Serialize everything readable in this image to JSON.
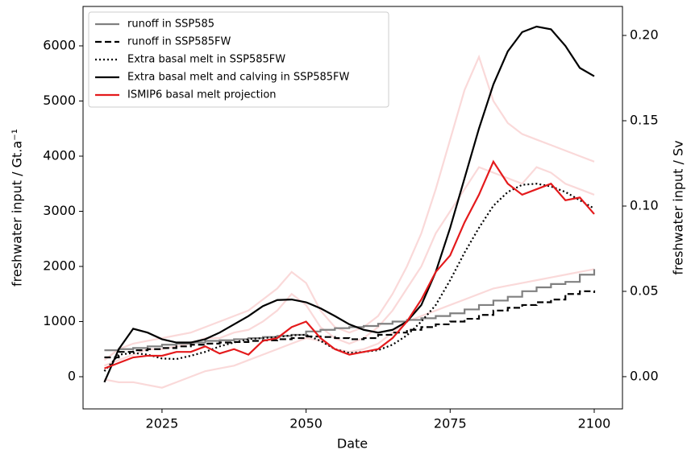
{
  "chart_data": {
    "type": "line",
    "x": [
      2015,
      2017.5,
      2020,
      2022.5,
      2025,
      2027.5,
      2030,
      2032.5,
      2035,
      2037.5,
      2040,
      2042.5,
      2045,
      2047.5,
      2050,
      2052.5,
      2055,
      2057.5,
      2060,
      2062.5,
      2065,
      2067.5,
      2070,
      2072.5,
      2075,
      2077.5,
      2080,
      2082.5,
      2085,
      2087.5,
      2090,
      2092.5,
      2095,
      2097.5,
      2100
    ],
    "series": [
      {
        "color": "#f08080",
        "opacity": 0.3,
        "linestyle": "solid",
        "values": [
          -50,
          -100,
          -100,
          -150,
          -200,
          -100,
          0,
          100,
          150,
          200,
          300,
          400,
          500,
          600,
          700,
          650,
          500,
          450,
          500,
          600,
          800,
          1000,
          1100,
          1200,
          1300,
          1400,
          1500,
          1600,
          1650,
          1700,
          1750,
          1800,
          1850,
          1900,
          1950
        ]
      },
      {
        "color": "#f08080",
        "opacity": 0.3,
        "linestyle": "solid",
        "values": [
          300,
          500,
          600,
          650,
          700,
          750,
          800,
          900,
          1000,
          1100,
          1200,
          1400,
          1600,
          1900,
          1700,
          1200,
          900,
          800,
          900,
          1100,
          1500,
          2000,
          2600,
          3400,
          4300,
          5200,
          5800,
          5000,
          4600,
          4400,
          4300,
          4200,
          4100,
          4000,
          3900
        ]
      },
      {
        "color": "#f08080",
        "opacity": 0.3,
        "linestyle": "solid",
        "values": [
          200,
          300,
          400,
          500,
          500,
          550,
          600,
          700,
          700,
          800,
          850,
          1000,
          1200,
          1500,
          1300,
          900,
          700,
          600,
          700,
          900,
          1200,
          1600,
          2000,
          2600,
          3000,
          3400,
          3800,
          3700,
          3600,
          3500,
          3800,
          3700,
          3500,
          3400,
          3300
        ]
      },
      {
        "name": "runoff in SSP585",
        "color": "#808080",
        "linestyle": "solid",
        "step": true,
        "values": [
          480,
          500,
          520,
          550,
          580,
          600,
          620,
          650,
          660,
          680,
          700,
          720,
          740,
          760,
          820,
          850,
          880,
          900,
          920,
          960,
          1000,
          1030,
          1060,
          1100,
          1150,
          1220,
          1300,
          1380,
          1450,
          1550,
          1620,
          1680,
          1720,
          1850,
          1950
        ]
      },
      {
        "name": "runoff in SSP585FW",
        "color": "#000000",
        "linestyle": "dashed",
        "step": true,
        "values": [
          350,
          450,
          480,
          500,
          520,
          550,
          580,
          600,
          620,
          630,
          650,
          660,
          680,
          700,
          730,
          720,
          700,
          680,
          700,
          760,
          800,
          850,
          900,
          950,
          1000,
          1050,
          1120,
          1200,
          1250,
          1300,
          1350,
          1400,
          1500,
          1550,
          1520
        ]
      },
      {
        "name": "Extra basal melt in SSP585FW",
        "color": "#000000",
        "linestyle": "dotted",
        "values": [
          100,
          400,
          430,
          400,
          330,
          320,
          380,
          450,
          550,
          620,
          680,
          700,
          720,
          750,
          760,
          650,
          500,
          430,
          450,
          480,
          580,
          750,
          1000,
          1300,
          1750,
          2250,
          2700,
          3100,
          3350,
          3480,
          3500,
          3450,
          3350,
          3200,
          3050
        ]
      },
      {
        "name": "Extra basal melt and calving in SSP585FW",
        "color": "#000000",
        "linestyle": "solid",
        "values": [
          -100,
          500,
          870,
          800,
          680,
          620,
          620,
          680,
          800,
          950,
          1100,
          1280,
          1390,
          1400,
          1350,
          1240,
          1100,
          950,
          850,
          800,
          850,
          1000,
          1300,
          1900,
          2700,
          3600,
          4500,
          5300,
          5900,
          6250,
          6350,
          6300,
          6000,
          5600,
          5450
        ]
      },
      {
        "name": "ISMIP6 basal melt projection",
        "color": "#e41a1c",
        "linestyle": "solid",
        "values": [
          150,
          250,
          350,
          380,
          380,
          450,
          450,
          550,
          420,
          500,
          400,
          650,
          700,
          900,
          1000,
          700,
          500,
          400,
          450,
          500,
          700,
          1000,
          1400,
          1900,
          2200,
          2800,
          3300,
          3900,
          3500,
          3300,
          3400,
          3500,
          3200,
          3250,
          2950
        ]
      }
    ],
    "xlabel": "Date",
    "ylabel": "freshwater input / Gt.a⁻¹",
    "y2label": "freshwater input / Sv",
    "xlim": [
      2011.3,
      2104.9
    ],
    "ylim": [
      -584,
      6715
    ],
    "y2lim": [
      -0.0189,
      0.217
    ],
    "xticks": [
      2025,
      2050,
      2075,
      2100
    ],
    "yticks": [
      0,
      1000,
      2000,
      3000,
      4000,
      5000,
      6000
    ],
    "y2ticks": [
      {
        "value": 0,
        "label": "0.00"
      },
      {
        "value": 0.05,
        "label": "0.05"
      },
      {
        "value": 0.1,
        "label": "0.10"
      },
      {
        "value": 0.15,
        "label": "0.15"
      },
      {
        "value": 0.2,
        "label": "0.20"
      }
    ],
    "legend": "upper left"
  }
}
